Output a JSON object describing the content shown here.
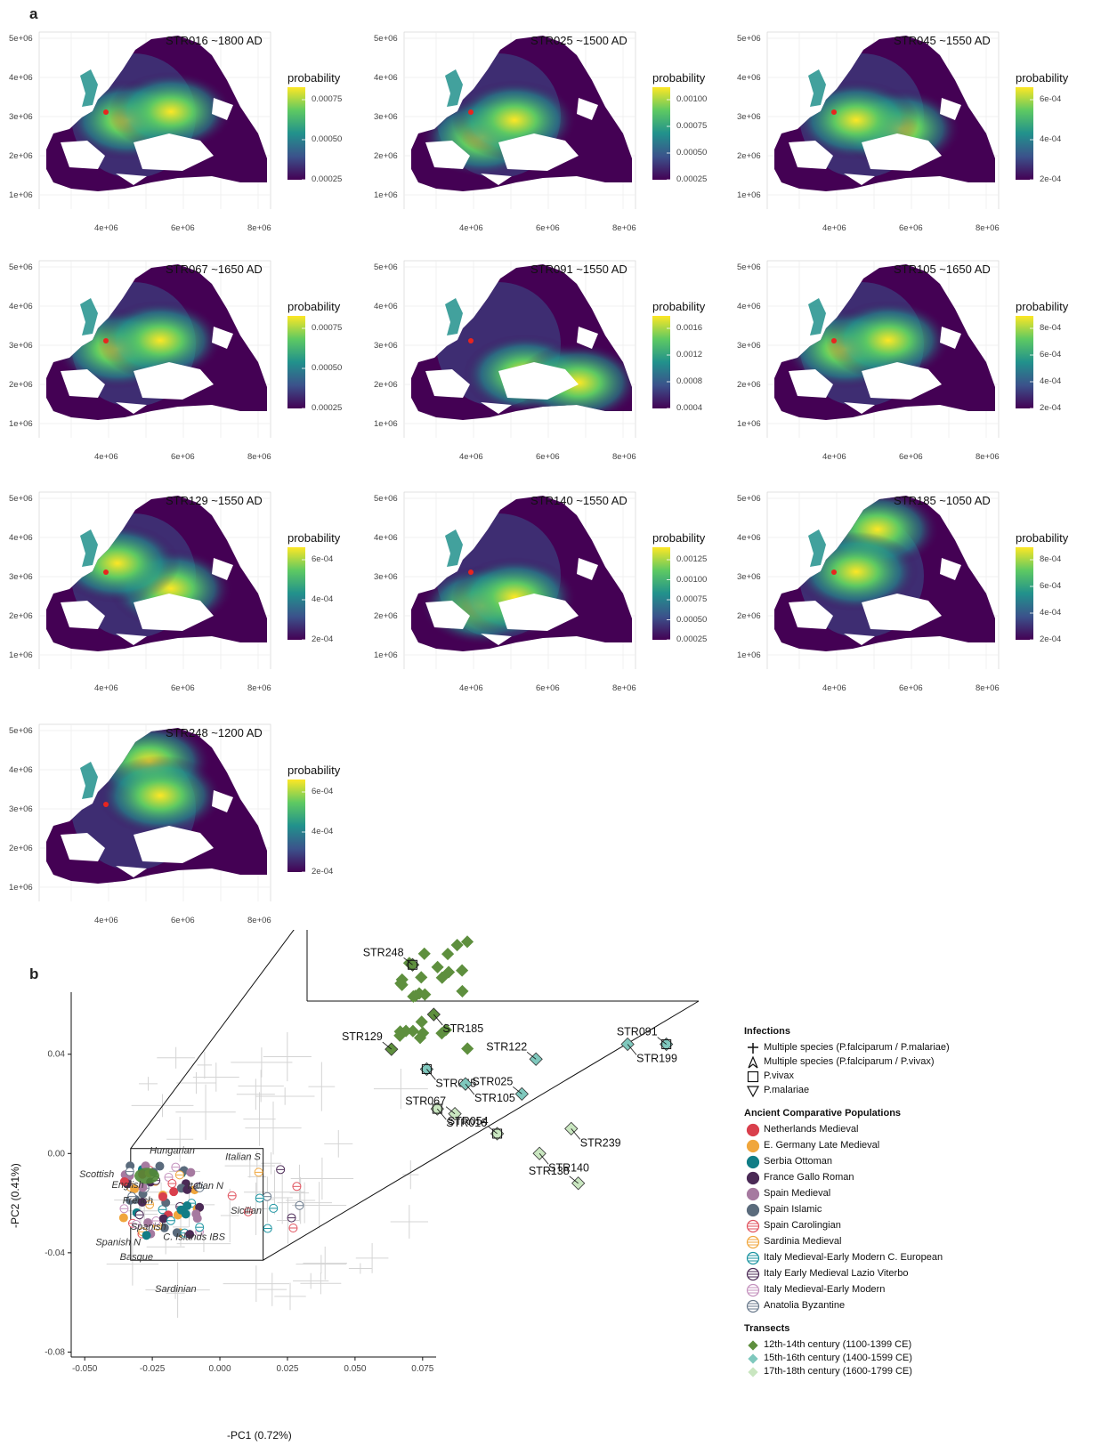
{
  "panels": {
    "a": "a",
    "b": "b"
  },
  "gradient": [
    "#440154",
    "#3b528b",
    "#21918c",
    "#5ec962",
    "#fde725"
  ],
  "maps": [
    {
      "title": "STR016 ~1800 AD",
      "legend_title": "probability",
      "ticks": [
        "0.00075",
        "0.00050",
        "0.00025"
      ],
      "hot": [
        [
          0.35,
          0.5
        ],
        [
          0.55,
          0.45
        ]
      ]
    },
    {
      "title": "STR025 ~1500 AD",
      "legend_title": "probability",
      "ticks": [
        "0.00100",
        "0.00075",
        "0.00050",
        "0.00025"
      ],
      "hot": [
        [
          0.3,
          0.6
        ],
        [
          0.45,
          0.5
        ]
      ]
    },
    {
      "title": "STR045 ~1550 AD",
      "legend_title": "probability",
      "ticks": [
        "6e-04",
        "4e-04",
        "2e-04"
      ],
      "hot": [
        [
          0.55,
          0.55
        ],
        [
          0.35,
          0.5
        ]
      ]
    },
    {
      "title": "STR067 ~1650 AD",
      "legend_title": "probability",
      "ticks": [
        "0.00075",
        "0.00050",
        "0.00025"
      ],
      "hot": [
        [
          0.3,
          0.5
        ],
        [
          0.5,
          0.45
        ]
      ]
    },
    {
      "title": "STR091 ~1550 AD",
      "legend_title": "probability",
      "ticks": [
        "0.0016",
        "0.0012",
        "0.0008",
        "0.0004"
      ],
      "hot": [
        [
          0.5,
          0.65
        ],
        [
          0.75,
          0.7
        ]
      ]
    },
    {
      "title": "STR105 ~1650 AD",
      "legend_title": "probability",
      "ticks": [
        "8e-04",
        "6e-04",
        "4e-04",
        "2e-04"
      ],
      "hot": [
        [
          0.3,
          0.5
        ],
        [
          0.5,
          0.45
        ]
      ]
    },
    {
      "title": "STR129 ~1550 AD",
      "legend_title": "probability",
      "ticks": [
        "6e-04",
        "4e-04",
        "2e-04"
      ],
      "hot": [
        [
          0.55,
          0.55
        ],
        [
          0.3,
          0.4
        ]
      ]
    },
    {
      "title": "STR140 ~1550 AD",
      "legend_title": "probability",
      "ticks": [
        "0.00125",
        "0.00100",
        "0.00075",
        "0.00050",
        "0.00025"
      ],
      "hot": [
        [
          0.3,
          0.65
        ],
        [
          0.45,
          0.6
        ]
      ]
    },
    {
      "title": "STR185 ~1050 AD",
      "legend_title": "probability",
      "ticks": [
        "8e-04",
        "6e-04",
        "4e-04",
        "2e-04"
      ],
      "hot": [
        [
          0.45,
          0.2
        ],
        [
          0.35,
          0.45
        ]
      ]
    },
    {
      "title": "STR248 ~1200 AD",
      "legend_title": "probability",
      "ticks": [
        "6e-04",
        "4e-04",
        "2e-04"
      ],
      "hot": [
        [
          0.45,
          0.2
        ],
        [
          0.5,
          0.4
        ]
      ]
    }
  ],
  "map_axes": {
    "y_ticks": [
      "5e+06",
      "4e+06",
      "3e+06",
      "2e+06",
      "1e+06"
    ],
    "x_ticks": [
      "4e+06",
      "6e+06",
      "8e+06"
    ]
  },
  "chart_data": {
    "type": "scatter",
    "xlabel": "-PC1 (0.72%)",
    "ylabel": "-PC2 (0.41%)",
    "xlim": [
      -0.055,
      0.08
    ],
    "ylim": [
      -0.082,
      0.065
    ],
    "x_ticks": [
      "-0.050",
      "-0.025",
      "0.000",
      "0.025",
      "0.050",
      "0.075"
    ],
    "y_ticks": [
      "0.04",
      "0.00",
      "-0.04",
      "-0.08"
    ],
    "population_labels": [
      "Hungarian",
      "Italian S",
      "Scottish",
      "English",
      "Italian N",
      "French",
      "Sicilian",
      "Spanish",
      "C. Islands IBS",
      "Spanish N",
      "Basque",
      "Sardinian"
    ],
    "infection_samples": [
      {
        "name": "STR248",
        "x": 1.1,
        "y": 5.3
      },
      {
        "name": "STR185",
        "x": 1.7,
        "y": 4.3
      },
      {
        "name": "STR129",
        "x": 0.5,
        "y": 3.6
      },
      {
        "name": "STR045",
        "x": 1.5,
        "y": 3.2
      },
      {
        "name": "STR122",
        "x": 4.6,
        "y": 3.4
      },
      {
        "name": "STR199",
        "x": 7.2,
        "y": 3.7
      },
      {
        "name": "STR091",
        "x": 8.3,
        "y": 3.7
      },
      {
        "name": "STR105",
        "x": 2.6,
        "y": 2.9
      },
      {
        "name": "STR025",
        "x": 4.2,
        "y": 2.7
      },
      {
        "name": "STR016",
        "x": 1.8,
        "y": 2.4
      },
      {
        "name": "STR067",
        "x": 2.3,
        "y": 2.3
      },
      {
        "name": "STR239",
        "x": 5.6,
        "y": 2.0
      },
      {
        "name": "STR054",
        "x": 3.5,
        "y": 1.9
      },
      {
        "name": "STR140",
        "x": 4.7,
        "y": 1.5
      },
      {
        "name": "STR138",
        "x": 5.8,
        "y": 0.9
      }
    ],
    "legend": {
      "infections_title": "Infections",
      "infections": [
        {
          "label": "Multiple species (P.falciparum / P.malariae)",
          "shape": "plus"
        },
        {
          "label": "Multiple species (P.falciparum / P.vivax)",
          "shape": "tri-pointer"
        },
        {
          "label": "P.vivax",
          "shape": "square"
        },
        {
          "label": "P.malariae",
          "shape": "triangle-down"
        }
      ],
      "populations_title": "Ancient Comparative Populations",
      "populations": [
        {
          "label": "Netherlands Medieval",
          "color": "#d93f4c",
          "striped": false
        },
        {
          "label": "E. Germany Late Medieval",
          "color": "#f0a63c",
          "striped": false
        },
        {
          "label": "Serbia Ottoman",
          "color": "#117d86",
          "striped": false
        },
        {
          "label": "France Gallo Roman",
          "color": "#4b2a56",
          "striped": false
        },
        {
          "label": "Spain Medieval",
          "color": "#a67aa0",
          "striped": false
        },
        {
          "label": "Spain Islamic",
          "color": "#5a6b7c",
          "striped": false
        },
        {
          "label": "Spain Carolingian",
          "color": "#e0525e",
          "striped": true
        },
        {
          "label": "Sardinia Medieval",
          "color": "#f0a63c",
          "striped": true
        },
        {
          "label": "Italy Medieval-Early Modern C. European",
          "color": "#1993a0",
          "striped": true
        },
        {
          "label": "Italy Early Medieval Lazio Viterbo",
          "color": "#4b2a56",
          "striped": true
        },
        {
          "label": "Italy Medieval-Early Modern",
          "color": "#c492be",
          "striped": true
        },
        {
          "label": "Anatolia Byzantine",
          "color": "#6a7a8c",
          "striped": true
        }
      ],
      "transects_title": "Transects",
      "transects": [
        {
          "label": "12th-14th century (1100-1399 CE)",
          "color": "#5e8f3e"
        },
        {
          "label": "15th-16th century (1400-1599 CE)",
          "color": "#7fc8bd"
        },
        {
          "label": "17th-18th century (1600-1799 CE)",
          "color": "#c9e6c0"
        }
      ]
    }
  }
}
